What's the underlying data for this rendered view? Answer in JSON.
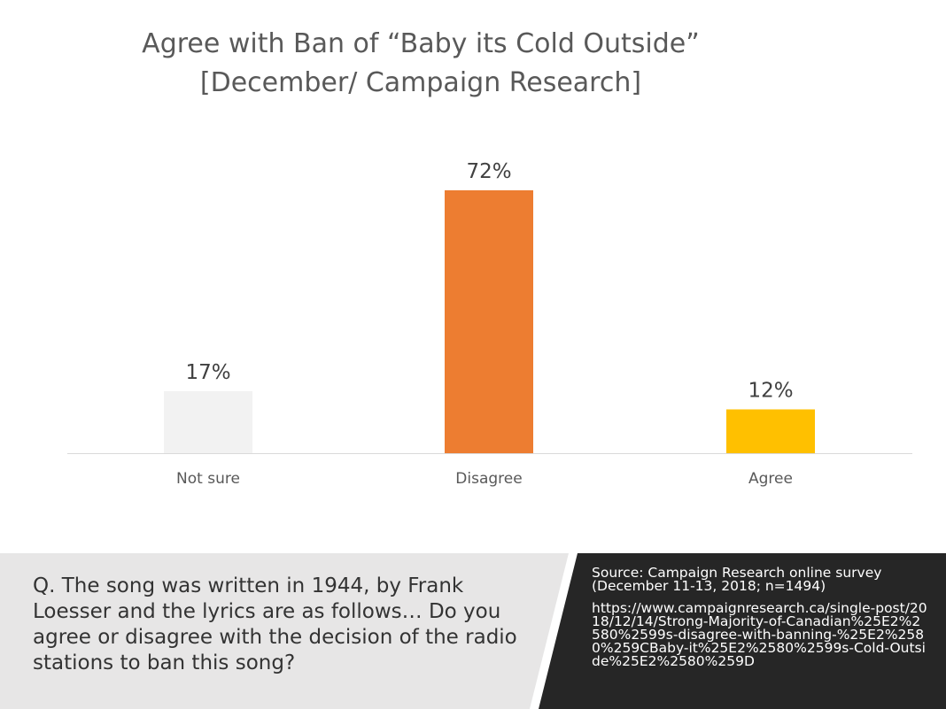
{
  "title": {
    "line1": "Agree with Ban of “Baby its Cold Outside”",
    "line2": "[December/ Campaign Research]"
  },
  "chart_data": {
    "type": "bar",
    "categories": [
      "Not sure",
      "Disagree",
      "Agree"
    ],
    "values": [
      17,
      72,
      12
    ],
    "value_labels": [
      "17%",
      "72%",
      "12%"
    ],
    "colors": [
      "#f2f2f2",
      "#ed7d31",
      "#ffc000"
    ],
    "ylim": [
      0,
      80
    ],
    "grid": false,
    "legend": "none"
  },
  "question": {
    "text": "Q. The song was written in 1944, by Frank Loesser and the lyrics are as follows… Do you agree or disagree with the decision of the radio stations to ban this song?"
  },
  "source": {
    "line1": "Source:  Campaign Research online survey",
    "line2": "(December 11-13, 2018; n=1494)",
    "url": "https://www.campaignresearch.ca/single-post/2018/12/14/Strong-Majority-of-Canadian%25E2%2580%2599s-disagree-with-banning-%25E2%2580%259CBaby-it%25E2%2580%2599s-Cold-Outside%25E2%2580%259D"
  },
  "colors": {
    "question_bg": "#e7e6e6",
    "source_bg": "#262626",
    "axis_line": "#d9d9d9",
    "label_text": "#595959"
  }
}
